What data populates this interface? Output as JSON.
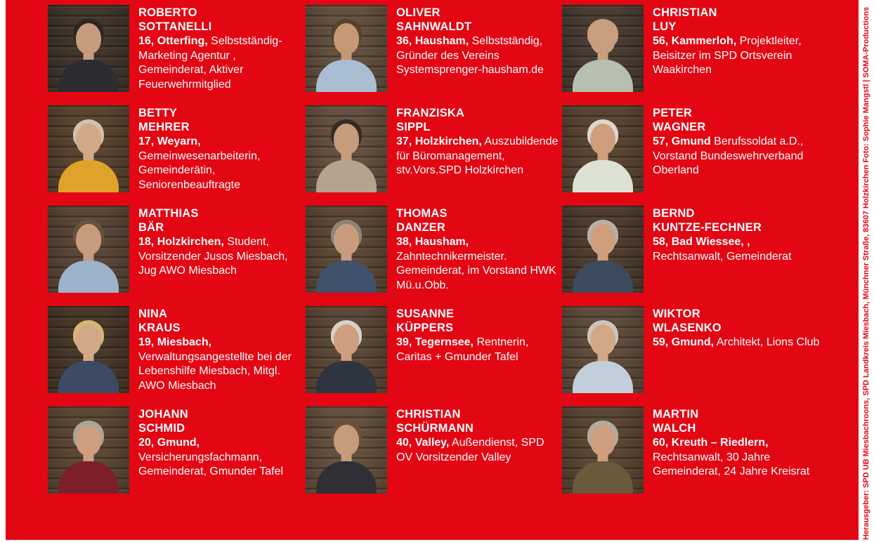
{
  "page": {
    "colors": {
      "red": "#e30613",
      "text": "#ffffff"
    },
    "imprint": "Herausgeber: SPD UB Miesbachroons, SPD Landkreis Miesbach, Münchner Straße, 83607 Holzkirchen  Foto: Sophie Mangstl | SOMA-Productions"
  },
  "candidates": [
    {
      "first_name": "ROBERTO",
      "last_name": "SOTTANELLI",
      "intro": "16, Otterfing,",
      "details": "Selbstständig-Marketing Agentur , Gemeinderat, Aktiver Feuerwehrmitglied",
      "photo": {
        "wood": "#41362b",
        "skin": "#c79c7d",
        "hair": "#2e2621",
        "top": "#2c2c31"
      }
    },
    {
      "first_name": "OLIVER",
      "last_name": "SAHNWALDT",
      "intro": "36, Hausham,",
      "details": "Selbstständig, Gründer des Vereins Systemsprenger-hausham.de",
      "photo": {
        "wood": "#63503f",
        "skin": "#c69873",
        "hair": "#54432f",
        "top": "#a9bed2"
      }
    },
    {
      "first_name": "CHRISTIAN",
      "last_name": "LUY",
      "intro": "56, Kammerloh,",
      "details": "Projektleiter, Beisitzer im SPD Ortsverein Waakirchen",
      "photo": {
        "wood": "#4a3c33",
        "skin": "#c89e7e",
        "hair": "#c89e7e",
        "top": "#b6bfb0"
      }
    },
    {
      "first_name": "BETTY",
      "last_name": "MEHRER",
      "intro": "17, Weyarn,",
      "details": "Gemeinwesenarbeiterin, Gemeinderätin, Seniorenbeauftragte",
      "photo": {
        "wood": "#59442f",
        "skin": "#d2a987",
        "hair": "#cec2a9",
        "top": "#dfa32c"
      }
    },
    {
      "first_name": "FRANZISKA",
      "last_name": "SIPPL",
      "intro": "37, Holzkirchen,",
      "details": "Auszubildende für Büromanagement, stv.Vors.SPD Holzkirchen",
      "photo": {
        "wood": "#64513f",
        "skin": "#c79c7d",
        "hair": "#352b25",
        "top": "#b4a48f"
      }
    },
    {
      "first_name": "PETER",
      "last_name": "WAGNER",
      "intro": "57, Gmund",
      "details": "Berufssoldat a.D., Vorstand Bundeswehrverband Oberland",
      "photo": {
        "wood": "#5a4533",
        "skin": "#cf9f7d",
        "hair": "#dbd8d0",
        "top": "#dde1d4"
      }
    },
    {
      "first_name": "MATTHIAS",
      "last_name": "BÄR",
      "intro": "18, Holzkirchen,",
      "details": "Student, Vorsitzender Jusos Miesbach, Jug AWO Miesbach",
      "photo": {
        "wood": "#5a4636",
        "skin": "#c79c7d",
        "hair": "#69523c",
        "top": "#9cb2cb"
      }
    },
    {
      "first_name": "THOMAS",
      "last_name": "DANZER",
      "intro": "38, Hausham,",
      "details": "Zahntechnikermeister. Gemeinderat, im Vorstand HWK Mü.u.Obb.",
      "photo": {
        "wood": "#5c4836",
        "skin": "#c79c7d",
        "hair": "#8e8475",
        "top": "#41506b"
      }
    },
    {
      "first_name": "BERND",
      "last_name": "KUNTZE-FECHNER",
      "intro": "58, Bad Wiessee, ,",
      "details": "Rechtsanwalt, Gemeinderat",
      "photo": {
        "wood": "#4e3d2f",
        "skin": "#cf9f7d",
        "hair": "#b7b1a5",
        "top": "#3c4a5e"
      }
    },
    {
      "first_name": "NINA",
      "last_name": "KRAUS",
      "intro": "19, Miesbach,",
      "details": "Verwaltungsangestellte bei der Lebenshilfe Miesbach, Mitgl. AWO Miesbach",
      "photo": {
        "wood": "#483828",
        "skin": "#d2a987",
        "hair": "#d7b674",
        "top": "#3d4a63"
      }
    },
    {
      "first_name": "SUSANNE",
      "last_name": "KÜPPERS",
      "intro": "39, Tegernsee,",
      "details": "Rentnerin, Caritas + Gmunder Tafel",
      "photo": {
        "wood": "#5c4836",
        "skin": "#cd9f7e",
        "hair": "#d6d2c9",
        "top": "#2e3440"
      }
    },
    {
      "first_name": "WIKTOR",
      "last_name": "WLASENKO",
      "intro": "59,  Gmund,",
      "details": "Architekt, Lions Club",
      "photo": {
        "wood": "#5f4c3c",
        "skin": "#d2a987",
        "hair": "#ccc6bc",
        "top": "#c2ceda"
      }
    },
    {
      "first_name": "JOHANN",
      "last_name": "SCHMID",
      "intro": "20, Gmund,",
      "details": "Versicherungsfachmann, Gemeinderat, Gmunder Tafel",
      "photo": {
        "wood": "#5c4734",
        "skin": "#cd9f7e",
        "hair": "#a5a59e",
        "top": "#7c1f2b"
      }
    },
    {
      "first_name": "CHRISTIAN",
      "last_name": "SCHÜRMANN",
      "intro": "40, Valley,",
      "details": "Außendienst, SPD OV Vorsitzender Valley",
      "photo": {
        "wood": "#64503e",
        "skin": "#c79c7d",
        "hair": "#6e5138",
        "top": "#2f2f35"
      }
    },
    {
      "first_name": "MARTIN",
      "last_name": "WALCH",
      "intro": "60,  Kreuth – Riedlern,",
      "details": "Rechtsanwalt, 30 Jahre Gemeinderat, 24 Jahre Kreisrat",
      "photo": {
        "wood": "#5a4634",
        "skin": "#cd9f7e",
        "hair": "#b1aba0",
        "top": "#6a5a3c"
      }
    }
  ]
}
